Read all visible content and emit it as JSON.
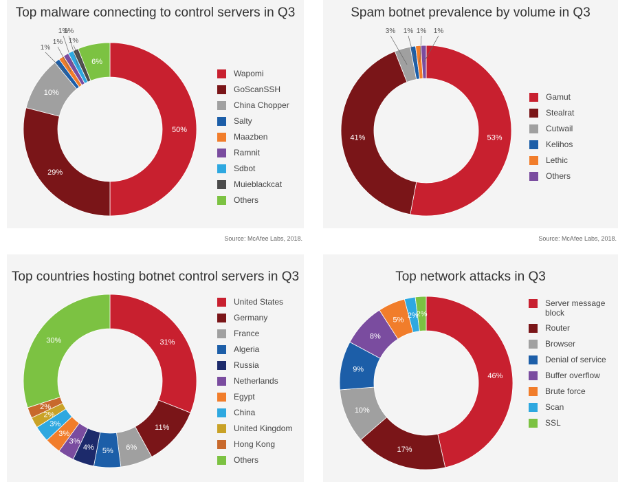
{
  "chart_data": [
    {
      "type": "pie",
      "title": "Top malware connecting to control servers in Q3",
      "categories": [
        "Wapomi",
        "GoScanSSH",
        "China Chopper",
        "Salty",
        "Maazben",
        "Ramnit",
        "Sdbot",
        "Muieblackcat",
        "Others"
      ],
      "values": [
        50,
        29,
        10,
        1,
        1,
        1,
        1,
        1,
        6
      ],
      "labels": [
        "50%",
        "29%",
        "10%",
        "1%",
        "1%",
        "1%",
        "1%",
        "1%",
        "6%"
      ],
      "colors": [
        "#c8202f",
        "#7a1518",
        "#a0a0a0",
        "#1c5ea8",
        "#f17d2b",
        "#7a4c9f",
        "#2ea8e0",
        "#4b4b4b",
        "#7cc242"
      ],
      "source": "Source: McAfee Labs, 2018."
    },
    {
      "type": "pie",
      "title": "Spam botnet prevalence by volume in Q3",
      "categories": [
        "Gamut",
        "Stealrat",
        "Cutwail",
        "Kelihos",
        "Lethic",
        "Others"
      ],
      "values": [
        53,
        41,
        3,
        1,
        1,
        1
      ],
      "labels": [
        "53%",
        "41%",
        "3%",
        "1%",
        "1%",
        "1%"
      ],
      "colors": [
        "#c8202f",
        "#7a1518",
        "#a0a0a0",
        "#1c5ea8",
        "#f17d2b",
        "#7a4c9f"
      ],
      "source": "Source: McAfee Labs, 2018."
    },
    {
      "type": "pie",
      "title": "Top countries hosting botnet control servers in Q3",
      "categories": [
        "United States",
        "Germany",
        "France",
        "Algeria",
        "Russia",
        "Netherlands",
        "Egypt",
        "China",
        "United Kingdom",
        "Hong Kong",
        "Others"
      ],
      "values": [
        31,
        11,
        6,
        5,
        4,
        3,
        3,
        3,
        2,
        2,
        30
      ],
      "labels": [
        "31%",
        "11%",
        "6%",
        "5%",
        "4%",
        "3%",
        "3%",
        "3%",
        "2%",
        "2%",
        "30%"
      ],
      "colors": [
        "#c8202f",
        "#7a1518",
        "#a0a0a0",
        "#1c5ea8",
        "#1c2a6b",
        "#7a4c9f",
        "#f17d2b",
        "#2ea8e0",
        "#c9a227",
        "#c8692c",
        "#7cc242"
      ]
    },
    {
      "type": "pie",
      "title": "Top network attacks in Q3",
      "categories": [
        "Server message block",
        "Router",
        "Browser",
        "Denial of service",
        "Buffer overflow",
        "Brute force",
        "Scan",
        "SSL"
      ],
      "legend_lines": [
        [
          "Server message",
          "block"
        ],
        [
          "Router"
        ],
        [
          "Browser"
        ],
        [
          "Denial of service"
        ],
        [
          "Buffer overflow"
        ],
        [
          "Brute force"
        ],
        [
          "Scan"
        ],
        [
          "SSL"
        ]
      ],
      "values": [
        46,
        17,
        10,
        9,
        8,
        5,
        2,
        2
      ],
      "labels": [
        "46%",
        "17%",
        "10%",
        "9%",
        "8%",
        "5%",
        "2%",
        "2%"
      ],
      "colors": [
        "#c8202f",
        "#7a1518",
        "#a0a0a0",
        "#1c5ea8",
        "#7a4c9f",
        "#f17d2b",
        "#2ea8e0",
        "#7cc242"
      ]
    }
  ]
}
